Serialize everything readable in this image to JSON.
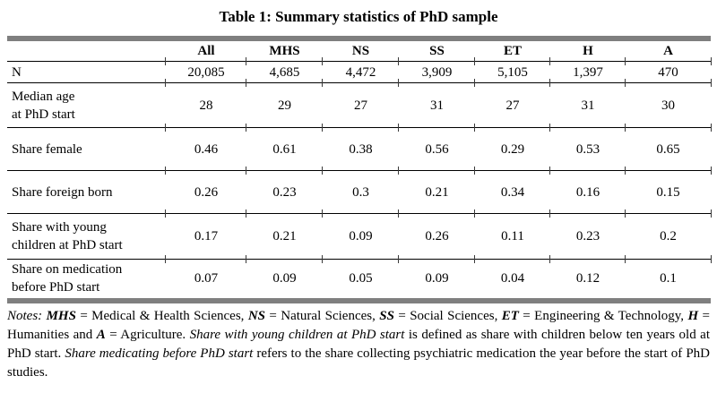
{
  "title": "Table 1: Summary statistics of PhD sample",
  "table": {
    "columns": [
      "",
      "All",
      "MHS",
      "NS",
      "SS",
      "ET",
      "H",
      "A"
    ],
    "rows": [
      {
        "label_lines": [
          "N"
        ],
        "values": [
          "20,085",
          "4,685",
          "4,472",
          "3,909",
          "5,105",
          "1,397",
          "470"
        ]
      },
      {
        "label_lines": [
          "Median age",
          "at PhD start"
        ],
        "values": [
          "28",
          "29",
          "27",
          "31",
          "27",
          "31",
          "30"
        ]
      },
      {
        "label_lines": [
          "Share female"
        ],
        "values": [
          "0.46",
          "0.61",
          "0.38",
          "0.56",
          "0.29",
          "0.53",
          "0.65"
        ]
      },
      {
        "label_lines": [
          "Share foreign born"
        ],
        "values": [
          "0.26",
          "0.23",
          "0.3",
          "0.21",
          "0.34",
          "0.16",
          "0.15"
        ]
      },
      {
        "label_lines": [
          "Share with young",
          "children at PhD start"
        ],
        "values": [
          "0.17",
          "0.21",
          "0.09",
          "0.26",
          "0.11",
          "0.23",
          "0.2"
        ]
      },
      {
        "label_lines": [
          "Share on medication",
          "before PhD start"
        ],
        "values": [
          "0.07",
          "0.09",
          "0.05",
          "0.09",
          "0.04",
          "0.12",
          "0.1"
        ]
      }
    ]
  },
  "chart_data": {
    "type": "table",
    "title": "Table 1: Summary statistics of PhD sample",
    "categories": [
      "All",
      "MHS",
      "NS",
      "SS",
      "ET",
      "H",
      "A"
    ],
    "series": [
      {
        "name": "N",
        "values": [
          20085,
          4685,
          4472,
          3909,
          5105,
          1397,
          470
        ]
      },
      {
        "name": "Median age at PhD start",
        "values": [
          28,
          29,
          27,
          31,
          27,
          31,
          30
        ]
      },
      {
        "name": "Share female",
        "values": [
          0.46,
          0.61,
          0.38,
          0.56,
          0.29,
          0.53,
          0.65
        ]
      },
      {
        "name": "Share foreign born",
        "values": [
          0.26,
          0.23,
          0.3,
          0.21,
          0.34,
          0.16,
          0.15
        ]
      },
      {
        "name": "Share with young children at PhD start",
        "values": [
          0.17,
          0.21,
          0.09,
          0.26,
          0.11,
          0.23,
          0.2
        ]
      },
      {
        "name": "Share on medication before PhD start",
        "values": [
          0.07,
          0.09,
          0.05,
          0.09,
          0.04,
          0.12,
          0.1
        ]
      }
    ]
  },
  "notes": {
    "segments": [
      {
        "text": "Notes: ",
        "style": "it"
      },
      {
        "text": "MHS",
        "style": "bi"
      },
      {
        "text": " = Medical & Health Sciences, ",
        "style": "nm"
      },
      {
        "text": "NS",
        "style": "bi"
      },
      {
        "text": " = Natural Sciences, ",
        "style": "nm"
      },
      {
        "text": "SS",
        "style": "bi"
      },
      {
        "text": " = Social Sciences, ",
        "style": "nm"
      },
      {
        "text": "ET",
        "style": "bi"
      },
      {
        "text": " = Engineering & Technology, ",
        "style": "nm"
      },
      {
        "text": "H",
        "style": "bi"
      },
      {
        "text": " = Humanities and ",
        "style": "nm"
      },
      {
        "text": "A",
        "style": "bi"
      },
      {
        "text": " = Agriculture. ",
        "style": "nm"
      },
      {
        "text": "Share with young children at PhD start",
        "style": "it"
      },
      {
        "text": " is defined as share with children below ten years old at PhD start. ",
        "style": "nm"
      },
      {
        "text": "Share medicating before PhD start",
        "style": "it"
      },
      {
        "text": " refers to the share collecting psychiatric medication the year before the start of PhD studies.",
        "style": "nm"
      }
    ]
  },
  "colors": {
    "thick_bar": "#7f7f7f",
    "rule": "#000000",
    "tick": "#3a3a3a",
    "text": "#000000",
    "background": "#ffffff"
  }
}
